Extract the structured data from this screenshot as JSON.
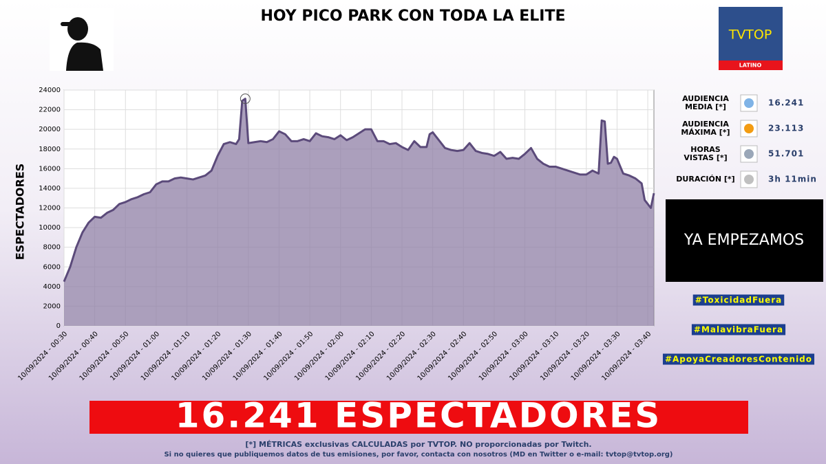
{
  "chart_data": {
    "type": "area",
    "title": "HOY PICO PARK CON TODA LA ELITE",
    "y_label": "ESPECTADORES",
    "x": [
      30,
      32,
      34,
      36,
      38,
      40,
      42,
      44,
      46,
      48,
      50,
      52,
      54,
      56,
      58,
      60,
      62,
      64,
      66,
      68,
      70,
      72,
      74,
      76,
      78,
      80,
      82,
      84,
      86,
      87,
      88,
      89,
      90,
      92,
      94,
      96,
      98,
      100,
      102,
      104,
      106,
      108,
      110,
      112,
      114,
      116,
      118,
      120,
      122,
      124,
      126,
      128,
      130,
      132,
      134,
      136,
      138,
      140,
      142,
      144,
      146,
      148,
      149,
      150,
      152,
      154,
      156,
      158,
      160,
      162,
      164,
      166,
      168,
      170,
      172,
      174,
      176,
      178,
      180,
      182,
      184,
      186,
      188,
      190,
      192,
      194,
      196,
      198,
      200,
      202,
      204,
      205,
      206,
      207,
      208,
      209,
      210,
      212,
      214,
      216,
      218,
      219,
      221,
      222
    ],
    "values": [
      4500,
      6000,
      8000,
      9500,
      10500,
      11100,
      11000,
      11500,
      11800,
      12400,
      12600,
      12900,
      13100,
      13400,
      13600,
      14400,
      14700,
      14700,
      15000,
      15100,
      15000,
      14900,
      15100,
      15300,
      15800,
      17300,
      18500,
      18700,
      18500,
      19000,
      22900,
      23113,
      18600,
      18700,
      18800,
      18700,
      19000,
      19800,
      19500,
      18800,
      18800,
      19000,
      18800,
      19600,
      19300,
      19200,
      19000,
      19400,
      18900,
      19200,
      19600,
      20000,
      20000,
      18800,
      18800,
      18500,
      18600,
      18200,
      17900,
      18800,
      18200,
      18200,
      19500,
      19700,
      18900,
      18100,
      17900,
      17800,
      17900,
      18600,
      17800,
      17600,
      17500,
      17300,
      17700,
      17000,
      17100,
      17000,
      17500,
      18100,
      17000,
      16500,
      16200,
      16200,
      16000,
      15800,
      15600,
      15400,
      15400,
      15800,
      15500,
      20900,
      20800,
      16500,
      16600,
      17200,
      17000,
      15500,
      15300,
      15000,
      14500,
      12800,
      12000,
      13500
    ],
    "color": "#5b4a7a",
    "fill": "#8f7fa6",
    "xlim": [
      30,
      222
    ],
    "ylim": [
      0,
      24000
    ],
    "yticks": [
      0,
      2000,
      4000,
      6000,
      8000,
      10000,
      12000,
      14000,
      16000,
      18000,
      20000,
      22000,
      24000
    ],
    "xticks": [
      {
        "value": 30,
        "label": "10/09/2024 - 00:30"
      },
      {
        "value": 40,
        "label": "10/09/2024 - 00:40"
      },
      {
        "value": 50,
        "label": "10/09/2024 - 00:50"
      },
      {
        "value": 60,
        "label": "10/09/2024 - 01:00"
      },
      {
        "value": 70,
        "label": "10/09/2024 - 01:10"
      },
      {
        "value": 80,
        "label": "10/09/2024 - 01:20"
      },
      {
        "value": 90,
        "label": "10/09/2024 - 01:30"
      },
      {
        "value": 100,
        "label": "10/09/2024 - 01:40"
      },
      {
        "value": 110,
        "label": "10/09/2024 - 01:50"
      },
      {
        "value": 120,
        "label": "10/09/2024 - 02:00"
      },
      {
        "value": 130,
        "label": "10/09/2024 - 02:10"
      },
      {
        "value": 140,
        "label": "10/09/2024 - 02:20"
      },
      {
        "value": 150,
        "label": "10/09/2024 - 02:30"
      },
      {
        "value": 160,
        "label": "10/09/2024 - 02:40"
      },
      {
        "value": 170,
        "label": "10/09/2024 - 02:50"
      },
      {
        "value": 180,
        "label": "10/09/2024 - 03:00"
      },
      {
        "value": 190,
        "label": "10/09/2024 - 03:10"
      },
      {
        "value": 200,
        "label": "10/09/2024 - 03:20"
      },
      {
        "value": 210,
        "label": "10/09/2024 - 03:30"
      },
      {
        "value": 220,
        "label": "10/09/2024 - 03:40"
      }
    ],
    "grid": true
  },
  "logo": {
    "name": "TVTOP",
    "region": "LATINO"
  },
  "stats": [
    {
      "label": [
        "AUDIENCIA",
        "MEDIA [*]"
      ],
      "value": "16.241"
    },
    {
      "label": [
        "AUDIENCIA",
        "MÁXIMA [*]"
      ],
      "value": "23.113"
    },
    {
      "label": [
        "HORAS",
        "VISTAS [*]"
      ],
      "value": "51.701"
    },
    {
      "label": [
        "DURACIÓN [*]"
      ],
      "value": "3h 11min"
    }
  ],
  "status": "YA EMPEZAMOS",
  "hashtags": [
    "#ToxicidadFuera",
    "#MalavibraFuera",
    "#ApoyaCreadoresContenido"
  ],
  "banner": "16.241 ESPECTADORES",
  "footer": [
    "[*] MÉTRICAS exclusivas CALCULADAS por TVTOP. NO proporcionadas por Twitch.",
    "Si no quieres que publiquemos datos de tus emisiones, por favor, contacta con nosotros (MD en Twitter o e-mail: tvtop@tvtop.org)"
  ]
}
